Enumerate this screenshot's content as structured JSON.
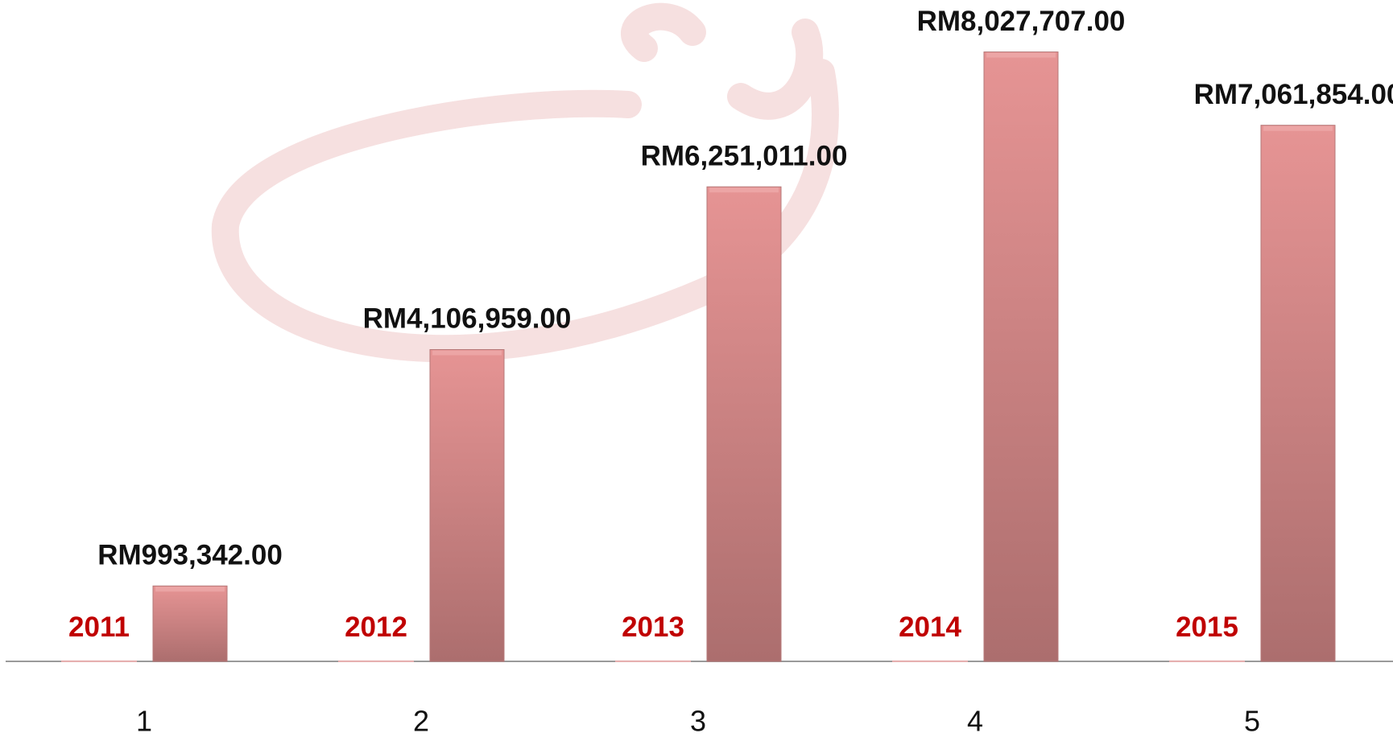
{
  "chart_data": {
    "type": "bar",
    "categories": [
      "1",
      "2",
      "3",
      "4",
      "5"
    ],
    "series": [
      {
        "color": "#c00000",
        "values": [
          2011,
          2012,
          2013,
          2014,
          2015
        ]
      },
      {
        "color": "#d88585",
        "values": [
          993342,
          4106959,
          6251011,
          8027707,
          7061854
        ],
        "value_labels": [
          "RM993,342.00",
          "RM4,106,959.00",
          "RM6,251,011.00",
          "RM8,027,707.00",
          "RM7,061,854.00"
        ]
      }
    ],
    "ylim": [
      0,
      8500000
    ]
  }
}
